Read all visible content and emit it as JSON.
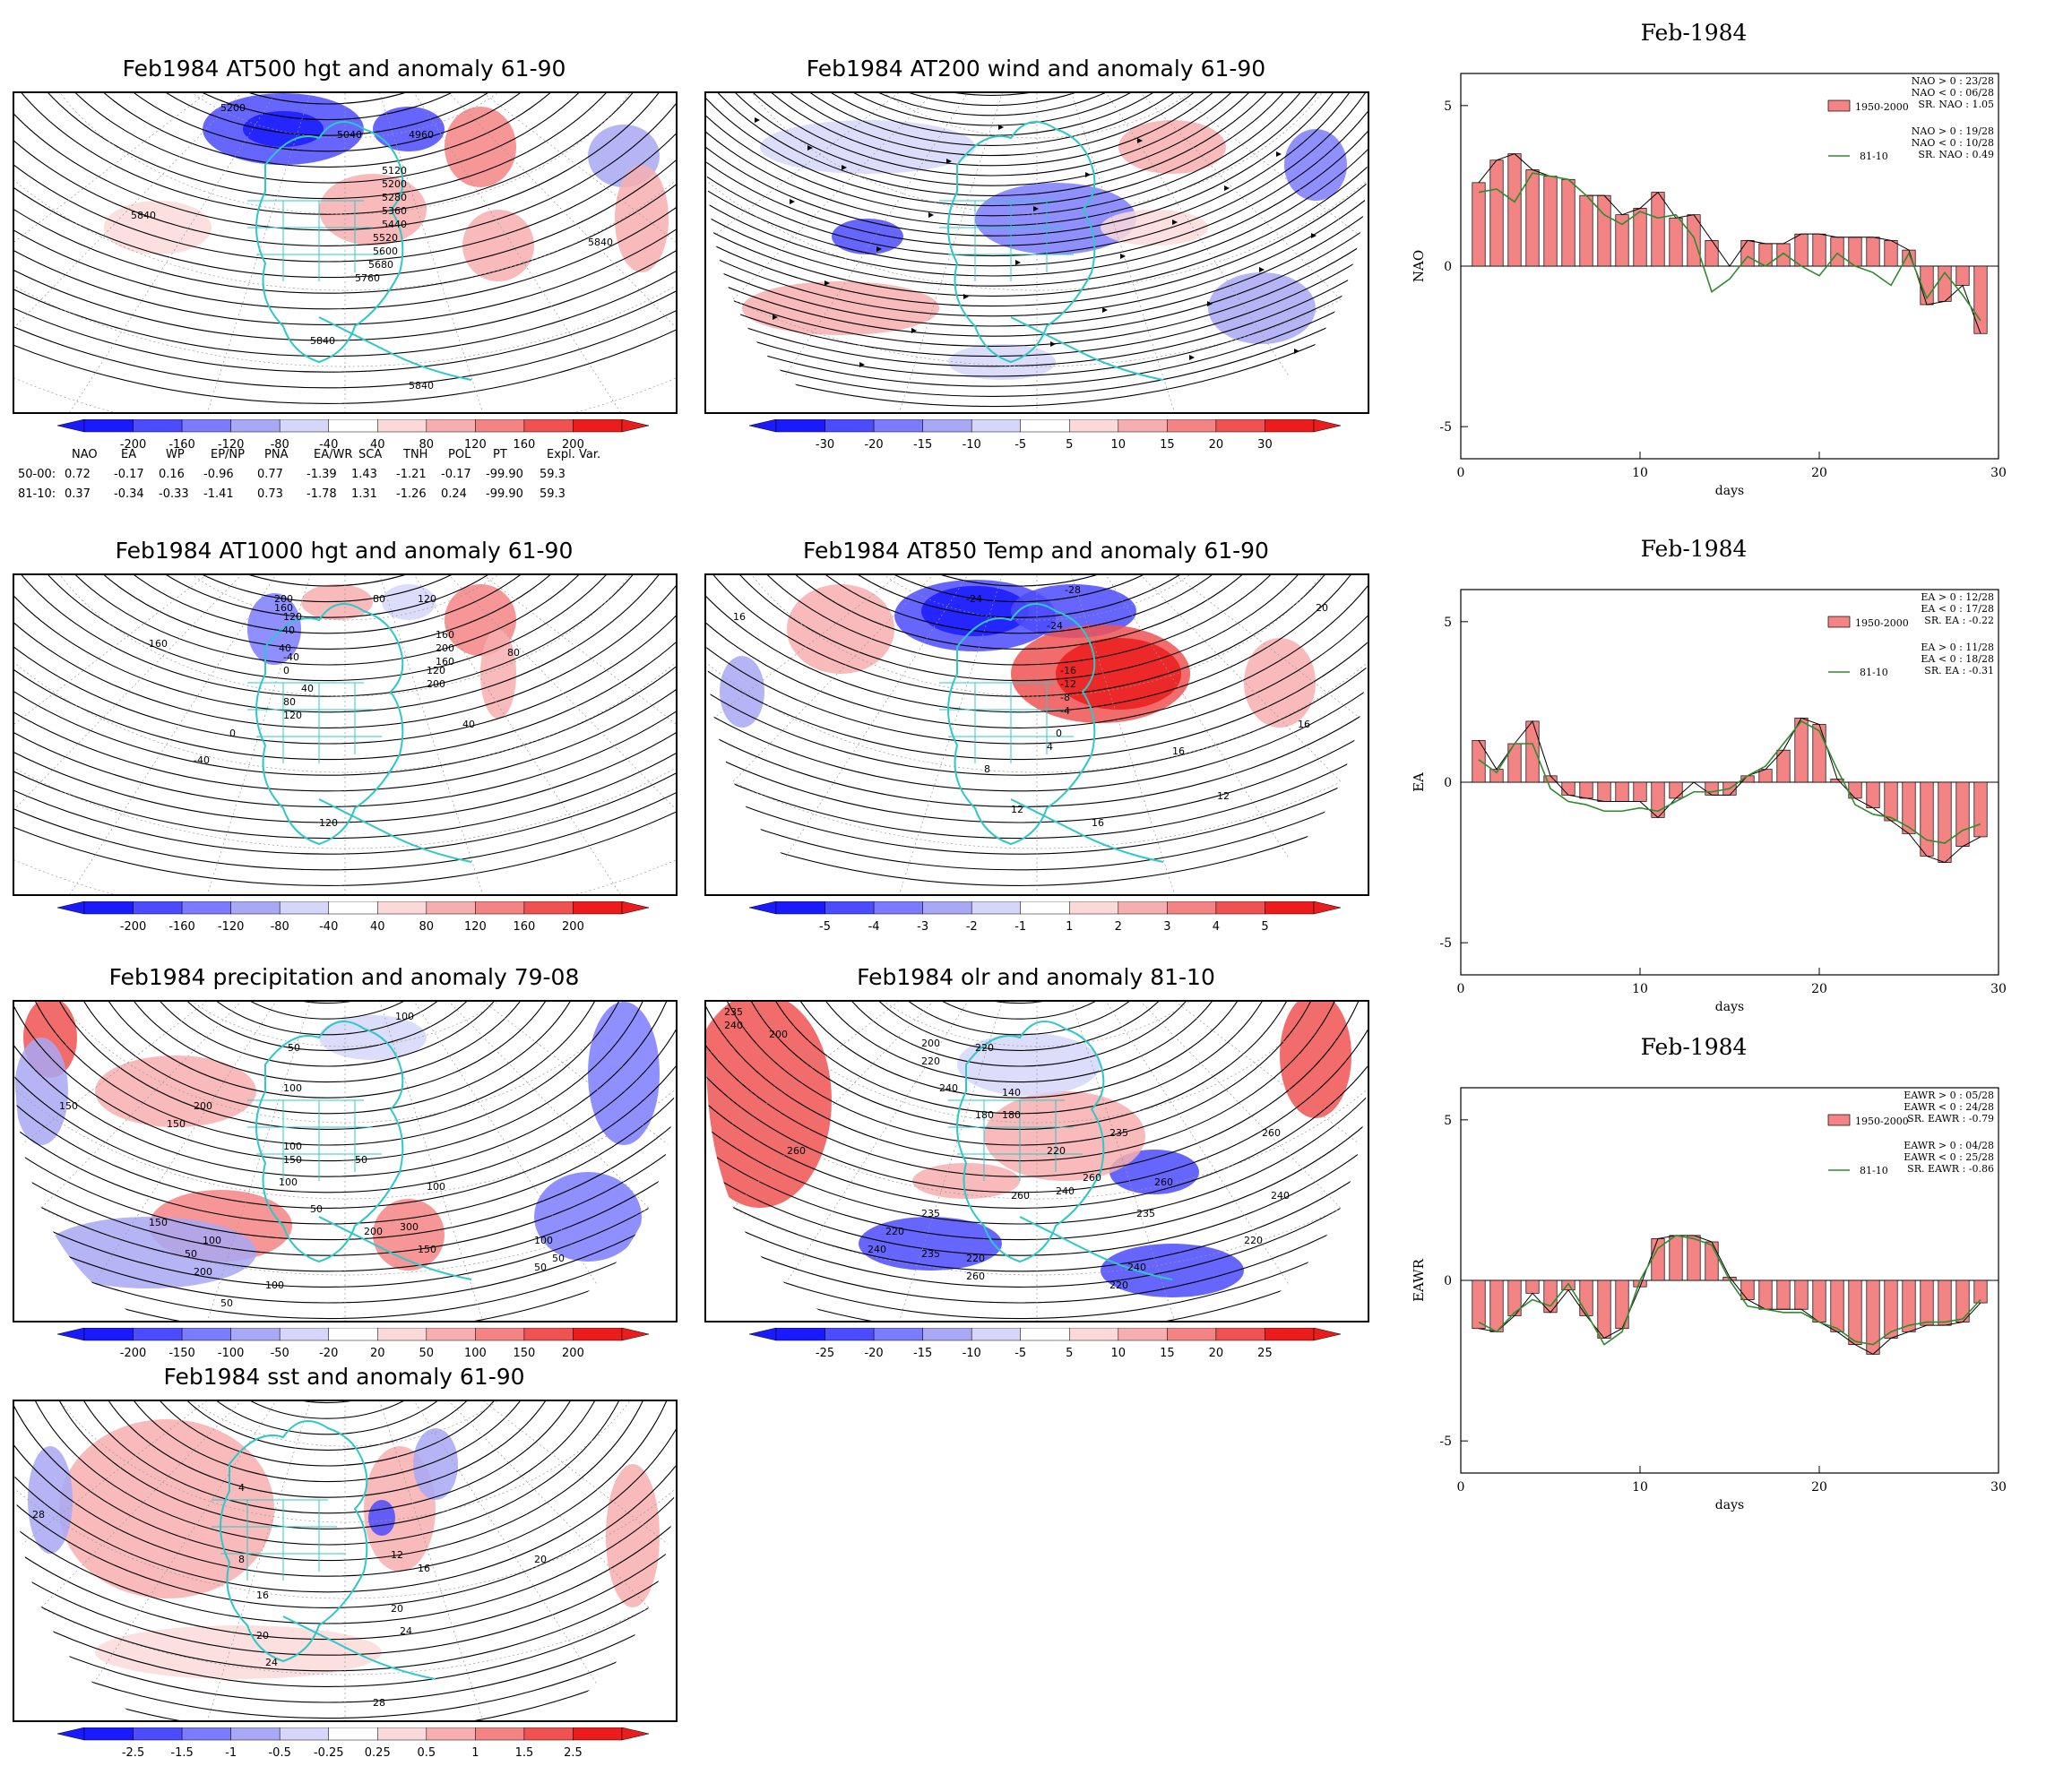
{
  "maps": [
    {
      "id": "at500",
      "title": "Feb1984 AT500 hgt and anomaly 61-90",
      "contour_labels": [
        "5200",
        "5040",
        "4960",
        "5120",
        "5200",
        "5280",
        "5360",
        "5440",
        "5520",
        "5600",
        "5680",
        "5760",
        "5840",
        "5840",
        "5840",
        "5840"
      ],
      "colorbar": [
        "-200",
        "-160",
        "-120",
        "-80",
        "-40",
        "40",
        "80",
        "120",
        "160",
        "200"
      ]
    },
    {
      "id": "at200",
      "title": "Feb1984 AT200 wind and anomaly 61-90",
      "contour_labels": [],
      "colorbar": [
        "-30",
        "-20",
        "-15",
        "-10",
        "-5",
        "5",
        "10",
        "15",
        "20",
        "30"
      ]
    },
    {
      "id": "at1000",
      "title": "Feb1984 AT1000 hgt and anomaly 61-90",
      "contour_labels": [
        "200",
        "160",
        "120",
        "-40",
        "40",
        "160",
        "-40",
        "0",
        "40",
        "80",
        "120",
        "80",
        "120",
        "160",
        "200",
        "160",
        "120",
        "200",
        "80",
        "40",
        "0",
        "-40",
        "120"
      ],
      "colorbar": [
        "-200",
        "-160",
        "-120",
        "-80",
        "-40",
        "40",
        "80",
        "120",
        "160",
        "200"
      ]
    },
    {
      "id": "at850",
      "title": "Feb1984 AT850 Temp and anomaly 61-90",
      "contour_labels": [
        "16",
        "-24",
        "-28",
        "-24",
        "20",
        "-16",
        "-12",
        "-8",
        "-4",
        "0",
        "4",
        "8",
        "12",
        "16",
        "16",
        "12",
        "16"
      ],
      "colorbar": [
        "-5",
        "-4",
        "-3",
        "-2",
        "-1",
        "1",
        "2",
        "3",
        "4",
        "5"
      ]
    },
    {
      "id": "precip",
      "title": "Feb1984 precipitation and anomaly 79-08",
      "contour_labels": [
        "100",
        "150",
        "100",
        "50",
        "200",
        "150",
        "100",
        "150",
        "50",
        "100",
        "50",
        "100",
        "300",
        "200",
        "100",
        "50",
        "200",
        "150",
        "100",
        "50",
        "150",
        "100",
        "50",
        "50"
      ],
      "colorbar": [
        "-200",
        "-150",
        "-100",
        "-50",
        "-20",
        "20",
        "50",
        "100",
        "150",
        "200"
      ]
    },
    {
      "id": "olr",
      "title": "Feb1984 olr and anomaly 81-10",
      "contour_labels": [
        "235",
        "240",
        "200",
        "220",
        "200",
        "220",
        "240",
        "260",
        "180",
        "140",
        "180",
        "220",
        "260",
        "240",
        "260",
        "235",
        "260",
        "235",
        "220",
        "240",
        "235",
        "220",
        "260",
        "240",
        "220",
        "235",
        "220",
        "240",
        "260"
      ],
      "colorbar": [
        "-25",
        "-20",
        "-15",
        "-10",
        "-5",
        "5",
        "10",
        "15",
        "20",
        "25"
      ]
    },
    {
      "id": "sst",
      "title": "Feb1984 sst and anomaly 61-90",
      "contour_labels": [
        "28",
        "4",
        "8",
        "16",
        "20",
        "24",
        "20",
        "24",
        "12",
        "16",
        "20",
        "28",
        "28"
      ],
      "colorbar": [
        "-2.5",
        "-1.5",
        "-1",
        "-0.5",
        "-0.25",
        "0.25",
        "0.5",
        "1",
        "1.5",
        "2.5"
      ]
    }
  ],
  "index_table": {
    "headers": [
      "NAO",
      "EA",
      "WP",
      "EP/NP",
      "PNA",
      "EA/WR",
      "SCA",
      "TNH",
      "POL",
      "PT",
      "Expl. Var."
    ],
    "rows": [
      {
        "label": "50-00:",
        "values": [
          "0.72",
          "-0.17",
          "0.16",
          "-0.96",
          "0.77",
          "-1.39",
          "1.43",
          "-1.21",
          "-0.17",
          "-99.90",
          "59.3"
        ]
      },
      {
        "label": "81-10:",
        "values": [
          "0.37",
          "-0.34",
          "-0.33",
          "-1.41",
          "0.73",
          "-1.78",
          "1.31",
          "-1.26",
          "0.24",
          "-99.90",
          "59.3"
        ]
      }
    ]
  },
  "colors": {
    "negative_scale": [
      "#1a1aff",
      "#4b4bff",
      "#7b7bff",
      "#a8a8f5",
      "#d6d6fa"
    ],
    "positive_scale": [
      "#fcd9d9",
      "#f7aeae",
      "#f48484",
      "#f05252",
      "#ec1c1c"
    ],
    "coastline": "#2ec8c8",
    "bar_fill": "#f48484",
    "line_81_10": "#2e8b2e"
  },
  "chart_data": [
    {
      "type": "bar",
      "title": "Feb-1984",
      "ylabel": "NAO",
      "xlabel": "days",
      "xlim": [
        0,
        30
      ],
      "ylim": [
        -6,
        6
      ],
      "xticks": [
        "0",
        "10",
        "20",
        "30"
      ],
      "yticks": [
        "5",
        "0",
        "-5"
      ],
      "x": [
        1,
        2,
        3,
        4,
        5,
        6,
        7,
        8,
        9,
        10,
        11,
        12,
        13,
        14,
        15,
        16,
        17,
        18,
        19,
        20,
        21,
        22,
        23,
        24,
        25,
        26,
        27,
        28,
        29
      ],
      "series": [
        {
          "name": "1950-2000",
          "kind": "bar",
          "values": [
            2.6,
            3.3,
            3.5,
            3.0,
            2.8,
            2.7,
            2.2,
            2.2,
            1.6,
            1.8,
            2.3,
            1.5,
            1.6,
            0.8,
            0.0,
            0.8,
            0.7,
            0.7,
            1.0,
            1.0,
            0.9,
            0.9,
            0.9,
            0.8,
            0.5,
            -1.2,
            -1.1,
            -0.6,
            -2.1
          ]
        },
        {
          "name": "81-10",
          "kind": "line",
          "values": [
            2.3,
            2.4,
            2.0,
            2.9,
            2.8,
            2.7,
            2.2,
            1.6,
            1.3,
            1.7,
            1.5,
            1.6,
            0.9,
            -0.8,
            -0.4,
            0.3,
            0.0,
            0.4,
            0.0,
            -0.3,
            0.4,
            0.0,
            -0.2,
            -0.6,
            0.4,
            -1.0,
            -0.2,
            -0.9,
            -1.7
          ]
        }
      ],
      "legend": {
        "bar_label": "1950-2000",
        "line_label": "81-10",
        "bar_stats": [
          "NAO > 0 : 23/28",
          "NAO < 0 : 06/28",
          "SR. NAO :  1.05"
        ],
        "line_stats": [
          "NAO > 0 : 19/28",
          "NAO < 0 : 10/28",
          "SR. NAO :  0.49"
        ]
      }
    },
    {
      "type": "bar",
      "title": "Feb-1984",
      "ylabel": "EA",
      "xlabel": "days",
      "xlim": [
        0,
        30
      ],
      "ylim": [
        -6,
        6
      ],
      "xticks": [
        "0",
        "10",
        "20",
        "30"
      ],
      "yticks": [
        "5",
        "0",
        "-5"
      ],
      "x": [
        1,
        2,
        3,
        4,
        5,
        6,
        7,
        8,
        9,
        10,
        11,
        12,
        13,
        14,
        15,
        16,
        17,
        18,
        19,
        20,
        21,
        22,
        23,
        24,
        25,
        26,
        27,
        28,
        29
      ],
      "series": [
        {
          "name": "1950-2000",
          "kind": "bar",
          "values": [
            1.3,
            0.4,
            1.2,
            1.9,
            0.2,
            -0.4,
            -0.5,
            -0.6,
            -0.6,
            -0.6,
            -1.1,
            -0.5,
            0.0,
            -0.4,
            -0.4,
            0.2,
            0.4,
            1.0,
            2.0,
            1.8,
            0.1,
            -0.5,
            -0.8,
            -1.2,
            -1.6,
            -2.3,
            -2.5,
            -2.0,
            -1.7
          ]
        },
        {
          "name": "81-10",
          "kind": "line",
          "values": [
            0.7,
            0.3,
            1.2,
            1.2,
            -0.2,
            -0.6,
            -0.7,
            -0.9,
            -0.9,
            -0.8,
            -0.9,
            -0.6,
            -0.3,
            -0.3,
            -0.2,
            0.2,
            0.5,
            1.2,
            1.9,
            1.6,
            0.4,
            -0.7,
            -1.0,
            -1.1,
            -1.4,
            -1.8,
            -1.9,
            -1.5,
            -1.3
          ]
        }
      ],
      "legend": {
        "bar_label": "1950-2000",
        "line_label": "81-10",
        "bar_stats": [
          "EA > 0 : 12/28",
          "EA < 0 : 17/28",
          "SR. EA : -0.22"
        ],
        "line_stats": [
          "EA > 0 : 11/28",
          "EA < 0 : 18/28",
          "SR. EA : -0.31"
        ]
      }
    },
    {
      "type": "bar",
      "title": "Feb-1984",
      "ylabel": "EAWR",
      "xlabel": "days",
      "xlim": [
        0,
        30
      ],
      "ylim": [
        -6,
        6
      ],
      "xticks": [
        "0",
        "10",
        "20",
        "30"
      ],
      "yticks": [
        "5",
        "0",
        "-5"
      ],
      "x": [
        1,
        2,
        3,
        4,
        5,
        6,
        7,
        8,
        9,
        10,
        11,
        12,
        13,
        14,
        15,
        16,
        17,
        18,
        19,
        20,
        21,
        22,
        23,
        24,
        25,
        26,
        27,
        28,
        29
      ],
      "series": [
        {
          "name": "1950-2000",
          "kind": "bar",
          "values": [
            -1.5,
            -1.6,
            -1.1,
            -0.4,
            -1.0,
            -0.3,
            -1.1,
            -1.8,
            -1.5,
            -0.2,
            1.3,
            1.4,
            1.4,
            1.2,
            0.1,
            -0.6,
            -0.9,
            -0.9,
            -0.9,
            -1.3,
            -1.6,
            -2.0,
            -2.3,
            -1.8,
            -1.6,
            -1.4,
            -1.4,
            -1.3,
            -0.7
          ]
        },
        {
          "name": "81-10",
          "kind": "line",
          "values": [
            -1.3,
            -1.6,
            -1.0,
            -0.6,
            -0.8,
            -0.1,
            -1.0,
            -2.0,
            -1.6,
            0.0,
            1.0,
            1.4,
            1.3,
            1.1,
            0.0,
            -0.8,
            -0.9,
            -1.0,
            -1.0,
            -1.3,
            -1.5,
            -1.9,
            -2.0,
            -1.6,
            -1.4,
            -1.3,
            -1.3,
            -1.2,
            -0.6
          ]
        }
      ],
      "legend": {
        "bar_label": "1950-2000",
        "line_label": "81-10",
        "bar_stats": [
          "EAWR > 0 : 05/28",
          "EAWR < 0 : 24/28",
          "SR. EAWR : -0.79"
        ],
        "line_stats": [
          "EAWR > 0 : 04/28",
          "EAWR < 0 : 25/28",
          "SR. EAWR : -0.86"
        ]
      }
    }
  ]
}
